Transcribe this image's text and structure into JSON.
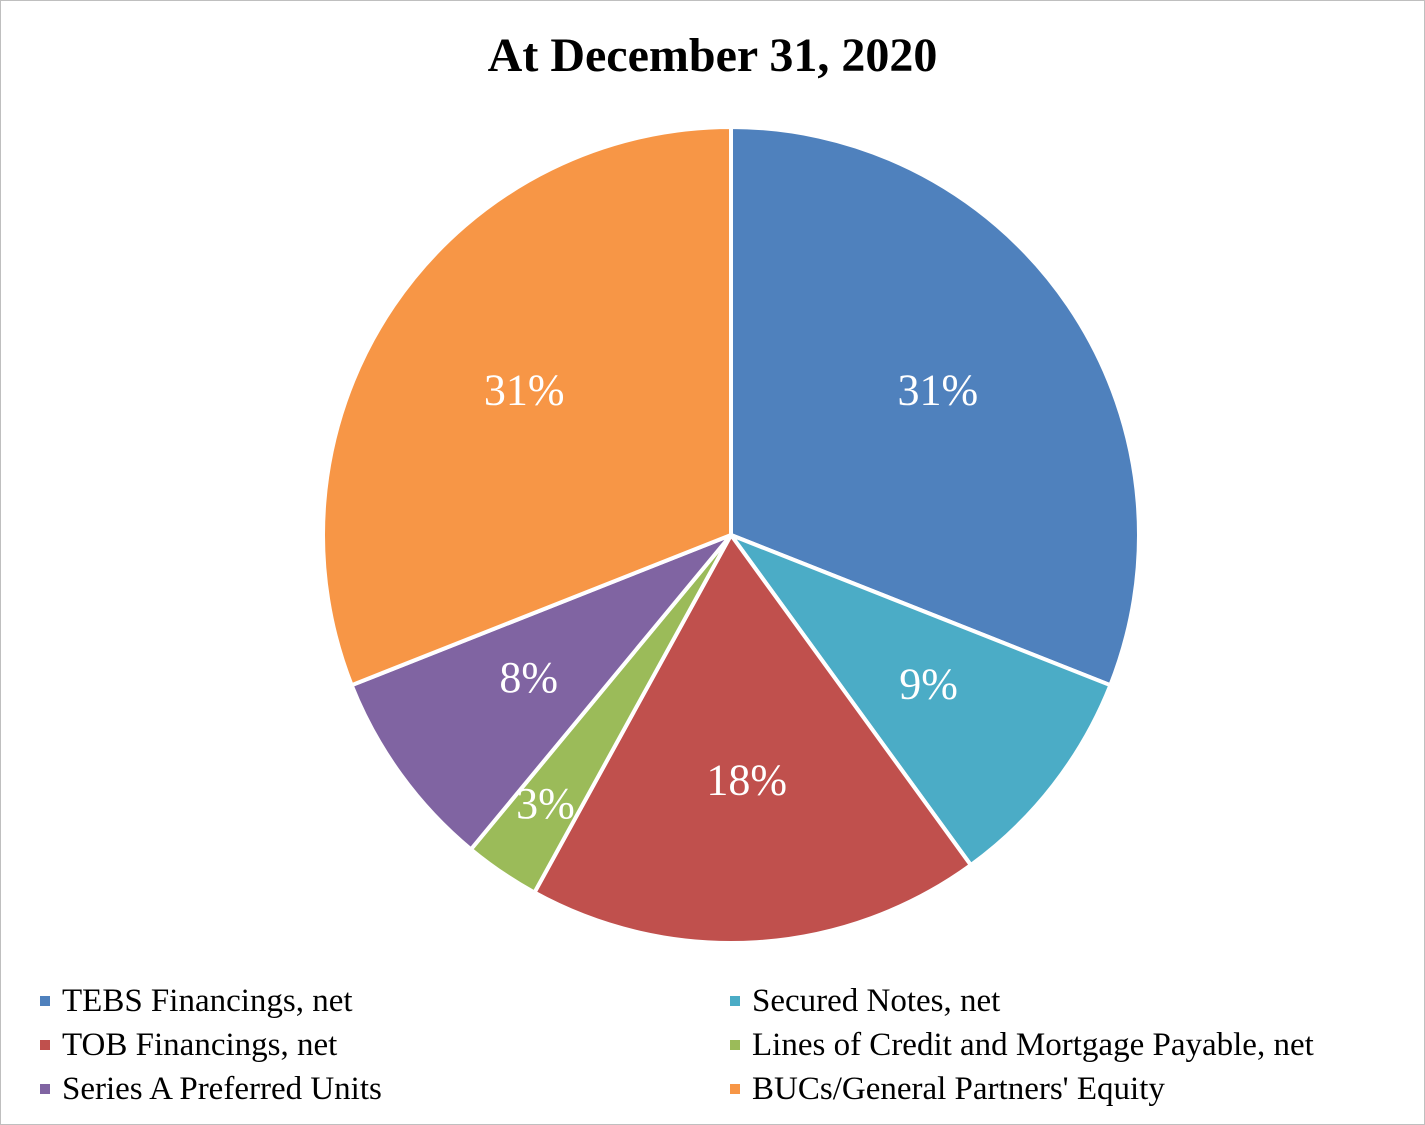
{
  "chart_data": {
    "type": "pie",
    "title": "At December 31, 2020",
    "slices": [
      {
        "name": "TEBS Financings, net",
        "value": 31,
        "label": "31%",
        "color": "#4F81BD"
      },
      {
        "name": "Secured Notes, net",
        "value": 9,
        "label": "9%",
        "color": "#4BACC6"
      },
      {
        "name": "TOB Financings, net",
        "value": 18,
        "label": "18%",
        "color": "#C0504D"
      },
      {
        "name": "Lines of Credit and Mortgage Payable, net",
        "value": 3,
        "label": "3%",
        "color": "#9BBB59"
      },
      {
        "name": "Series A Preferred Units",
        "value": 8,
        "label": "8%",
        "color": "#8064A2"
      },
      {
        "name": "BUCs/General Partners' Equity",
        "value": 31,
        "label": "31%",
        "color": "#F79646"
      }
    ],
    "legend_position": "bottom"
  }
}
